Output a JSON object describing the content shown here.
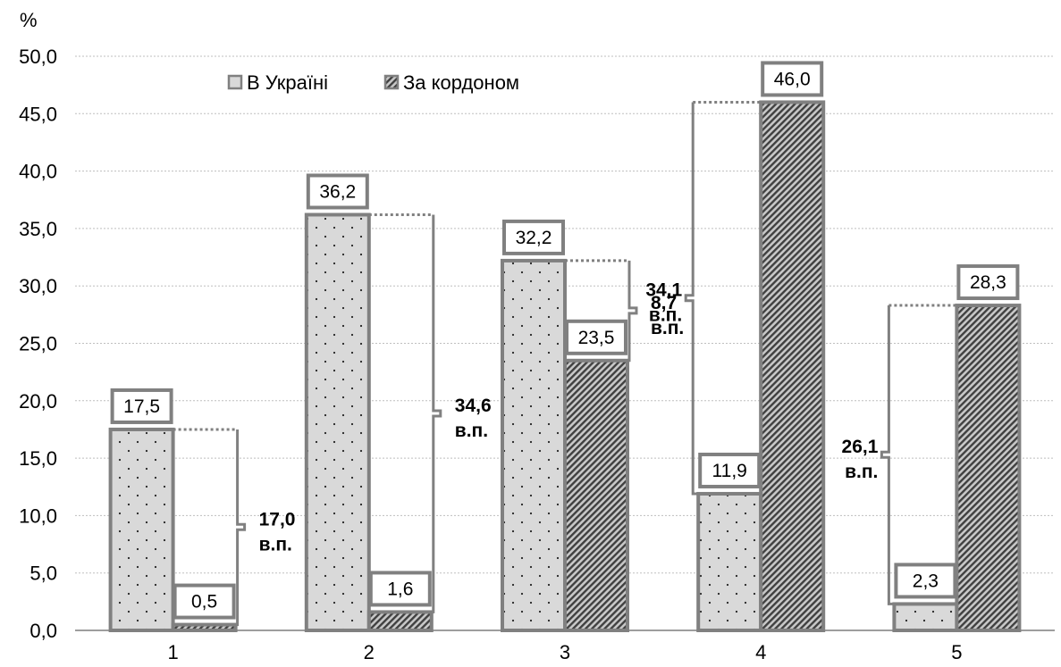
{
  "chart_data": {
    "type": "bar",
    "y_unit": "%",
    "categories": [
      "1",
      "2",
      "3",
      "4",
      "5"
    ],
    "series": [
      {
        "name": "В Україні",
        "values": [
          17.5,
          36.2,
          32.2,
          11.9,
          2.3
        ],
        "labels": [
          "17,5",
          "36,2",
          "32,2",
          "11,9",
          "2,3"
        ]
      },
      {
        "name": "За кордоном",
        "values": [
          0.5,
          1.6,
          23.5,
          46.0,
          28.3
        ],
        "labels": [
          "0,5",
          "1,6",
          "23,5",
          "46,0",
          "28,3"
        ]
      }
    ],
    "differences": [
      {
        "value": "17,0",
        "unit": "в.п."
      },
      {
        "value": "34,6",
        "unit": "в.п."
      },
      {
        "value": "8,7",
        "unit": "в.п."
      },
      {
        "value": "34,1",
        "unit": "в.п."
      },
      {
        "value": "26,1",
        "unit": "в.п."
      }
    ],
    "ylim": [
      0,
      50
    ],
    "y_ticks": [
      "0,0",
      "5,0",
      "10,0",
      "15,0",
      "20,0",
      "25,0",
      "30,0",
      "35,0",
      "40,0",
      "45,0",
      "50,0"
    ],
    "grid": true,
    "legend_position": "top-left",
    "colors": {
      "bar_fill": "#d9d9d9",
      "bar_border": "#808080",
      "grid": "#bfbfbf",
      "pattern_dark": "#404040"
    }
  }
}
